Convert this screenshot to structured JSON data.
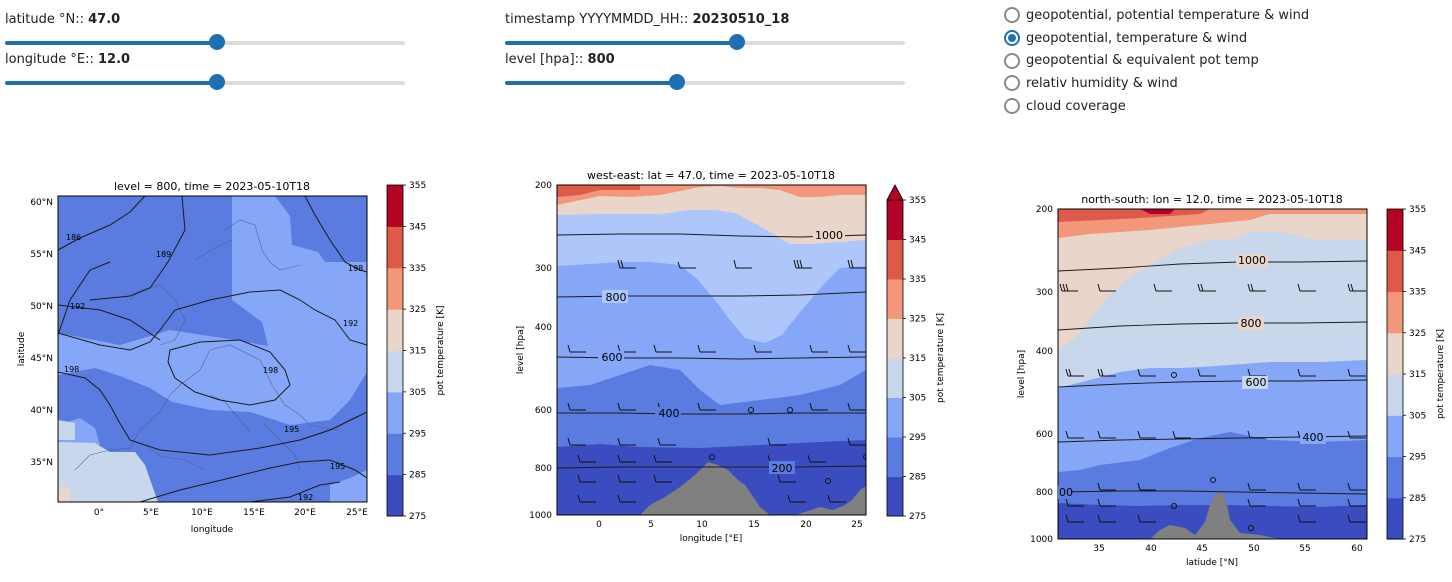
{
  "controls": {
    "latitude": {
      "label": "latitude °N::",
      "value": "47.0",
      "fraction": 0.53
    },
    "longitude": {
      "label": "longitude °E::",
      "value": "12.0",
      "fraction": 0.53
    },
    "timestamp": {
      "label": "timestamp YYYYMMDD_HH::",
      "value": "20230510_18",
      "fraction": 0.58
    },
    "level": {
      "label": "level [hpa]::",
      "value": "800",
      "fraction": 0.43
    },
    "accent": "#1f6fb3",
    "radio_options": [
      "geopotential, potential temperature & wind",
      "geopotential, temperature & wind",
      "geopotential & equivalent pot temp",
      "relativ humidity & wind",
      "cloud coverage"
    ],
    "radio_selected": 1
  },
  "chart_data": [
    {
      "type": "heatmap",
      "title": "level = 800, time = 2023-05-10T18",
      "xlabel": "longitude",
      "ylabel": "latitude",
      "xticks": [
        "0°",
        "5°E",
        "10°E",
        "15°E",
        "20°E",
        "25°E"
      ],
      "yticks": [
        "35°N",
        "40°N",
        "45°N",
        "50°N",
        "55°N",
        "60°N"
      ],
      "xlim": [
        -4,
        26
      ],
      "ylim": [
        31,
        61
      ],
      "contour_labels": [
        "186",
        "189",
        "192",
        "198",
        "198",
        "198",
        "192",
        "195",
        "195",
        "192"
      ],
      "colorbar_label": "pot temperature [K]",
      "colorbar_ticks": [
        355,
        345,
        335,
        325,
        315,
        305,
        295,
        285,
        275
      ]
    },
    {
      "type": "heatmap",
      "title": "west-east: lat = 47.0, time = 2023-05-10T18",
      "xlabel": "longitude [°E]",
      "ylabel": "level [hpa]",
      "xticks": [
        "0",
        "5",
        "10",
        "15",
        "20",
        "25"
      ],
      "yticks": [
        "200",
        "300",
        "400",
        "600",
        "800",
        "1000"
      ],
      "contour_labels": [
        "1000",
        "800",
        "600",
        "400",
        "200"
      ],
      "colorbar_label": "pot temperature [K]",
      "colorbar_ticks": [
        355,
        345,
        335,
        325,
        315,
        305,
        295,
        285,
        275
      ]
    },
    {
      "type": "heatmap",
      "title": "north-south: lon = 12.0, time = 2023-05-10T18",
      "xlabel": "latiude [°N]",
      "ylabel": "level [hpa]",
      "xticks": [
        "35",
        "40",
        "45",
        "50",
        "55",
        "60"
      ],
      "yticks": [
        "200",
        "300",
        "400",
        "600",
        "800",
        "1000"
      ],
      "contour_labels": [
        "1000",
        "800",
        "600",
        "400",
        "00"
      ],
      "colorbar_label": "pot temperature [K]",
      "colorbar_ticks": [
        355,
        345,
        335,
        325,
        315,
        305,
        295,
        285,
        275
      ]
    }
  ],
  "palette": [
    "#3b4cc0",
    "#5a7be0",
    "#86a7f7",
    "#c9d7ec",
    "#e9d5c9",
    "#f2977a",
    "#dd5a49",
    "#b40426"
  ],
  "terrain_color": "#808080"
}
